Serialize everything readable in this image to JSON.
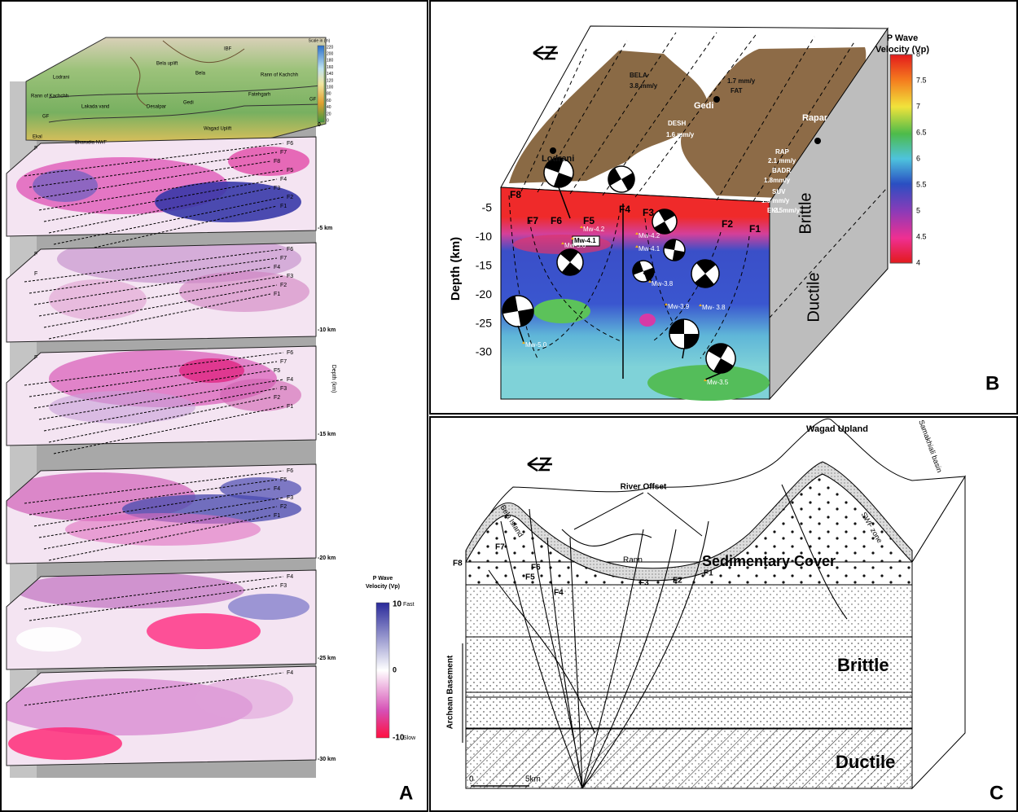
{
  "panel_a": {
    "letter": "A",
    "map_scale_title": "Scale in (m)",
    "map_scale": [
      220,
      200,
      180,
      160,
      140,
      120,
      100,
      80,
      60,
      40,
      20,
      0
    ],
    "map_places": [
      "IBF",
      "Bela uplift",
      "Lodrani",
      "Bela",
      "Rann of Kachchh",
      "Rann of Kachchh",
      "Lakada vand",
      "Desalpar",
      "Gedi",
      "Fatehgarh",
      "GF",
      "GF",
      "Ekal",
      "Wagad Uplift",
      "Bharudia NWF"
    ],
    "depth_title": "Depth (km)",
    "depth_labels": [
      "0",
      "-5 km",
      "-10 km",
      "-15 km",
      "-20 km",
      "-25 km",
      "-30 km"
    ],
    "slice_faults": [
      [
        "F",
        "F6",
        "F7",
        "F8",
        "F5",
        "F4",
        "F3",
        "F2",
        "F1"
      ],
      [
        "F",
        "F",
        "F6",
        "F7",
        "F4",
        "F3",
        "F2",
        "F1"
      ],
      [
        "F",
        "F6",
        "F7",
        "F5",
        "F4",
        "F3",
        "F2",
        "F1"
      ],
      [
        "F6",
        "F5",
        "F4",
        "F3",
        "F2",
        "F1"
      ],
      [
        "F4",
        "F3"
      ],
      [
        "F4"
      ]
    ],
    "legend_title": [
      "P Wave",
      "Velocity (Vp)"
    ],
    "legend_ticks": [
      "10",
      "0",
      "-10"
    ],
    "legend_ends": [
      "Fast",
      "Slow"
    ]
  },
  "panel_b": {
    "letter": "B",
    "colorbar_title": [
      "P Wave",
      "Velocity (Vp)"
    ],
    "colorbar_ticks": [
      "8",
      "7.5",
      "7",
      "6.5",
      "6",
      "5.5",
      "5",
      "4.5",
      "4"
    ],
    "depth_title": "Depth (km)",
    "depth_ticks": [
      "-5",
      "-10",
      "-15",
      "-20",
      "-25",
      "-30"
    ],
    "faults": [
      "F8",
      "F7",
      "F6",
      "F5",
      "F4",
      "F3",
      "F2",
      "F1"
    ],
    "events": [
      "Mw-5.6",
      "Mw-4.2",
      "Mw-4.2",
      "Mw-4.1",
      "Mw-4.1",
      "Mw-3.8",
      "Mw-3.9",
      "Mw- 3.8",
      "Mw-5.0",
      "Mw-3.5"
    ],
    "places": [
      "BELA",
      "3.8 mm/y",
      "1.7 mm/y",
      "FAT",
      "Gedi",
      "DESH",
      "1.6 mm/y",
      "Rapar",
      "RAP",
      "2.1 mm/y",
      "BADR",
      "1.8mm/y",
      "SUV",
      "1.9 mm/y",
      "EKL",
      "2.5mm/y",
      "Lodrani"
    ],
    "zones": [
      "Brittle",
      "Ductile"
    ]
  },
  "panel_c": {
    "letter": "C",
    "labels": [
      "Wagad Upland",
      "River Offset",
      "Samakhiali basin",
      "SWF zone",
      "Bela Island",
      "Rann",
      "Sedimentary Cover"
    ],
    "faults": [
      "F8",
      "F7",
      "F6",
      "F5",
      "F4",
      "F3",
      "F2",
      "F1"
    ],
    "zones": [
      "Brittle",
      "Ductile",
      "Archean Basement"
    ],
    "scale": [
      "0",
      "5km"
    ]
  }
}
